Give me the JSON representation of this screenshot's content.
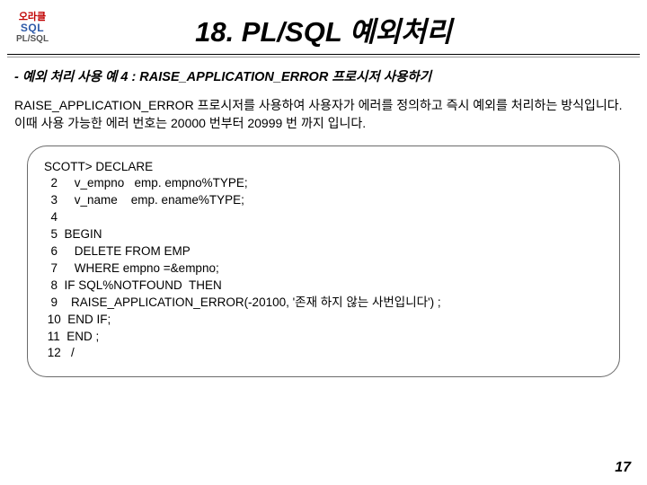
{
  "logo": {
    "top": "오라클",
    "mid": "SQL",
    "bot": "PL/SQL"
  },
  "title": "18. PL/SQL 예외처리",
  "subtitle": "- 예외 처리 사용 예 4 : RAISE_APPLICATION_ERROR 프로시저 사용하기",
  "description": "RAISE_APPLICATION_ERROR 프로시저를 사용하여 사용자가 에러를 정의하고\n즉시 예외를 처리하는 방식입니다.\n이때 사용 가능한 에러 번호는 20000 번부터 20999 번 까지 입니다.",
  "code": "SCOTT> DECLARE\n  2     v_empno   emp. empno%TYPE;\n  3     v_name    emp. ename%TYPE;\n  4\n  5  BEGIN\n  6     DELETE FROM EMP\n  7     WHERE empno =&empno;\n  8  IF SQL%NOTFOUND  THEN\n  9    RAISE_APPLICATION_ERROR(-20100, '존재 하지 않는 사번입니다') ;\n 10  END IF;\n 11  END ;\n 12   /",
  "page_number": "17"
}
